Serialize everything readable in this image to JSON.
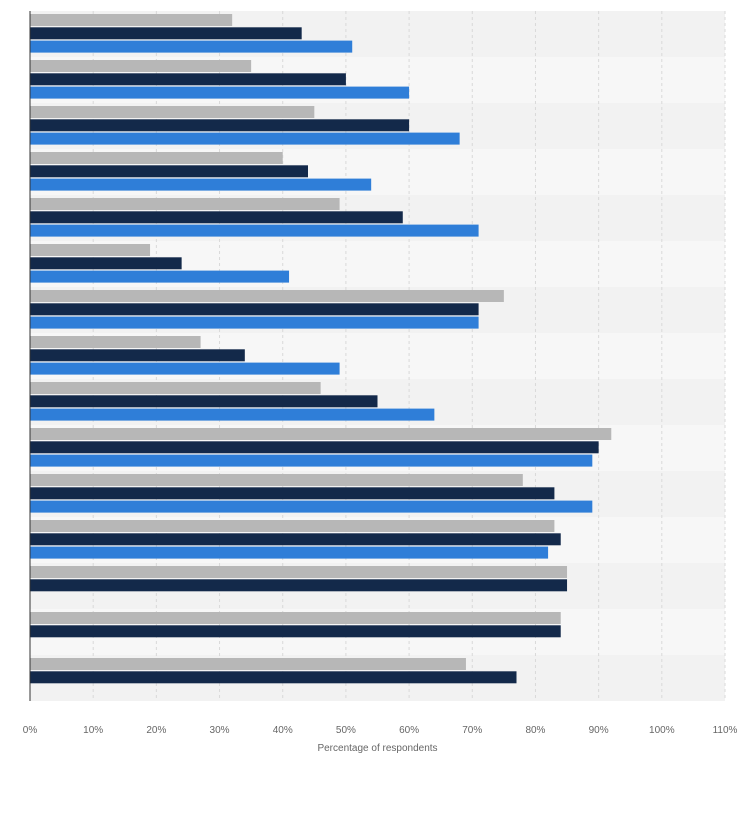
{
  "chart_data": {
    "type": "bar",
    "orientation": "horizontal",
    "xlabel": "Percentage of respondents",
    "xlim": [
      0,
      110
    ],
    "tick_labels": [
      "0%",
      "10%",
      "20%",
      "30%",
      "40%",
      "50%",
      "60%",
      "70%",
      "80%",
      "90%",
      "100%",
      "110%"
    ],
    "grid": true,
    "categories": [
      "",
      "",
      "",
      "",
      "",
      "",
      "",
      "",
      "",
      "",
      "",
      "",
      "",
      "",
      ""
    ],
    "series": [
      {
        "color": "#b7b7b7",
        "values": [
          32,
          35,
          45,
          40,
          49,
          19,
          75,
          27,
          46,
          92,
          78,
          83,
          85,
          84,
          69
        ]
      },
      {
        "color": "#13294a",
        "values": [
          43,
          50,
          60,
          44,
          59,
          24,
          71,
          34,
          55,
          90,
          83,
          84,
          85,
          84,
          77
        ]
      },
      {
        "color": "#2f7ed8",
        "values": [
          51,
          60,
          68,
          54,
          71,
          41,
          71,
          49,
          64,
          89,
          89,
          82,
          null,
          null,
          null
        ]
      }
    ]
  }
}
